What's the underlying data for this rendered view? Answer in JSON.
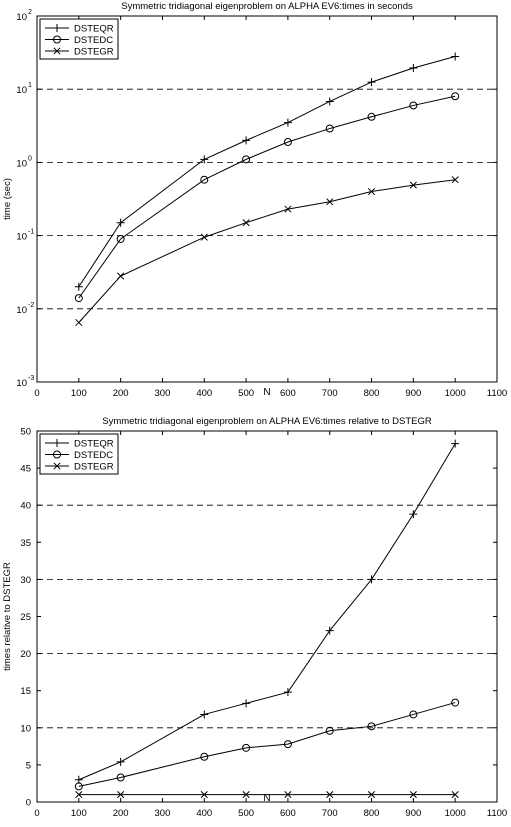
{
  "chart_data": [
    {
      "type": "line",
      "title": "Symmetric tridiagonal eigenproblem on ALPHA EV6:times in seconds",
      "xlabel": "N",
      "ylabel": "time (sec)",
      "xlim": [
        0,
        1100
      ],
      "ylim": [
        0.001,
        100
      ],
      "yscale": "log",
      "xticks": [
        "0",
        "100",
        "200",
        "300",
        "400",
        "500",
        "600",
        "700",
        "800",
        "900",
        "1000",
        "1100"
      ],
      "yticks": [
        {
          "base": "10",
          "exp": "-3"
        },
        {
          "base": "10",
          "exp": "-2"
        },
        {
          "base": "10",
          "exp": "-1"
        },
        {
          "base": "10",
          "exp": "0"
        },
        {
          "base": "10",
          "exp": "1"
        },
        {
          "base": "10",
          "exp": "2"
        }
      ],
      "grid_lines": [
        0.01,
        0.1,
        1,
        10
      ],
      "legend_position": "top-left",
      "x": [
        100,
        200,
        400,
        500,
        600,
        700,
        800,
        900,
        1000
      ],
      "series": [
        {
          "name": "DSTEQR",
          "marker": "plus",
          "values": [
            0.02,
            0.15,
            1.1,
            2.0,
            3.5,
            6.8,
            12.5,
            19.5,
            28.0
          ]
        },
        {
          "name": "DSTEDC",
          "marker": "circle",
          "values": [
            0.014,
            0.09,
            0.58,
            1.1,
            1.9,
            2.9,
            4.2,
            6.0,
            8.0
          ]
        },
        {
          "name": "DSTEGR",
          "marker": "x",
          "values": [
            0.0065,
            0.028,
            0.095,
            0.15,
            0.23,
            0.29,
            0.4,
            0.49,
            0.58
          ]
        }
      ]
    },
    {
      "type": "line",
      "title": "Symmetric tridiagonal eigenproblem on ALPHA EV6:times relative to DSTEGR",
      "xlabel": "N",
      "ylabel": "times relative to DSTEGR",
      "xlim": [
        0,
        1100
      ],
      "ylim": [
        0,
        50
      ],
      "yscale": "linear",
      "xticks": [
        "0",
        "100",
        "200",
        "300",
        "400",
        "500",
        "600",
        "700",
        "800",
        "900",
        "1000",
        "1100"
      ],
      "yticks": [
        "0",
        "5",
        "10",
        "15",
        "20",
        "25",
        "30",
        "35",
        "40",
        "45",
        "50"
      ],
      "grid_lines": [
        10,
        20,
        30,
        40
      ],
      "legend_position": "top-left",
      "x": [
        100,
        200,
        400,
        500,
        600,
        700,
        800,
        900,
        1000
      ],
      "series": [
        {
          "name": "DSTEQR",
          "marker": "plus",
          "values": [
            3.0,
            5.4,
            11.8,
            13.3,
            14.8,
            23.1,
            30.0,
            38.8,
            48.3
          ]
        },
        {
          "name": "DSTEDC",
          "marker": "circle",
          "values": [
            2.1,
            3.3,
            6.1,
            7.3,
            7.8,
            9.6,
            10.2,
            11.8,
            13.4
          ]
        },
        {
          "name": "DSTEGR",
          "marker": "x",
          "values": [
            1,
            1,
            1,
            1,
            1,
            1,
            1,
            1,
            1
          ]
        }
      ]
    }
  ]
}
